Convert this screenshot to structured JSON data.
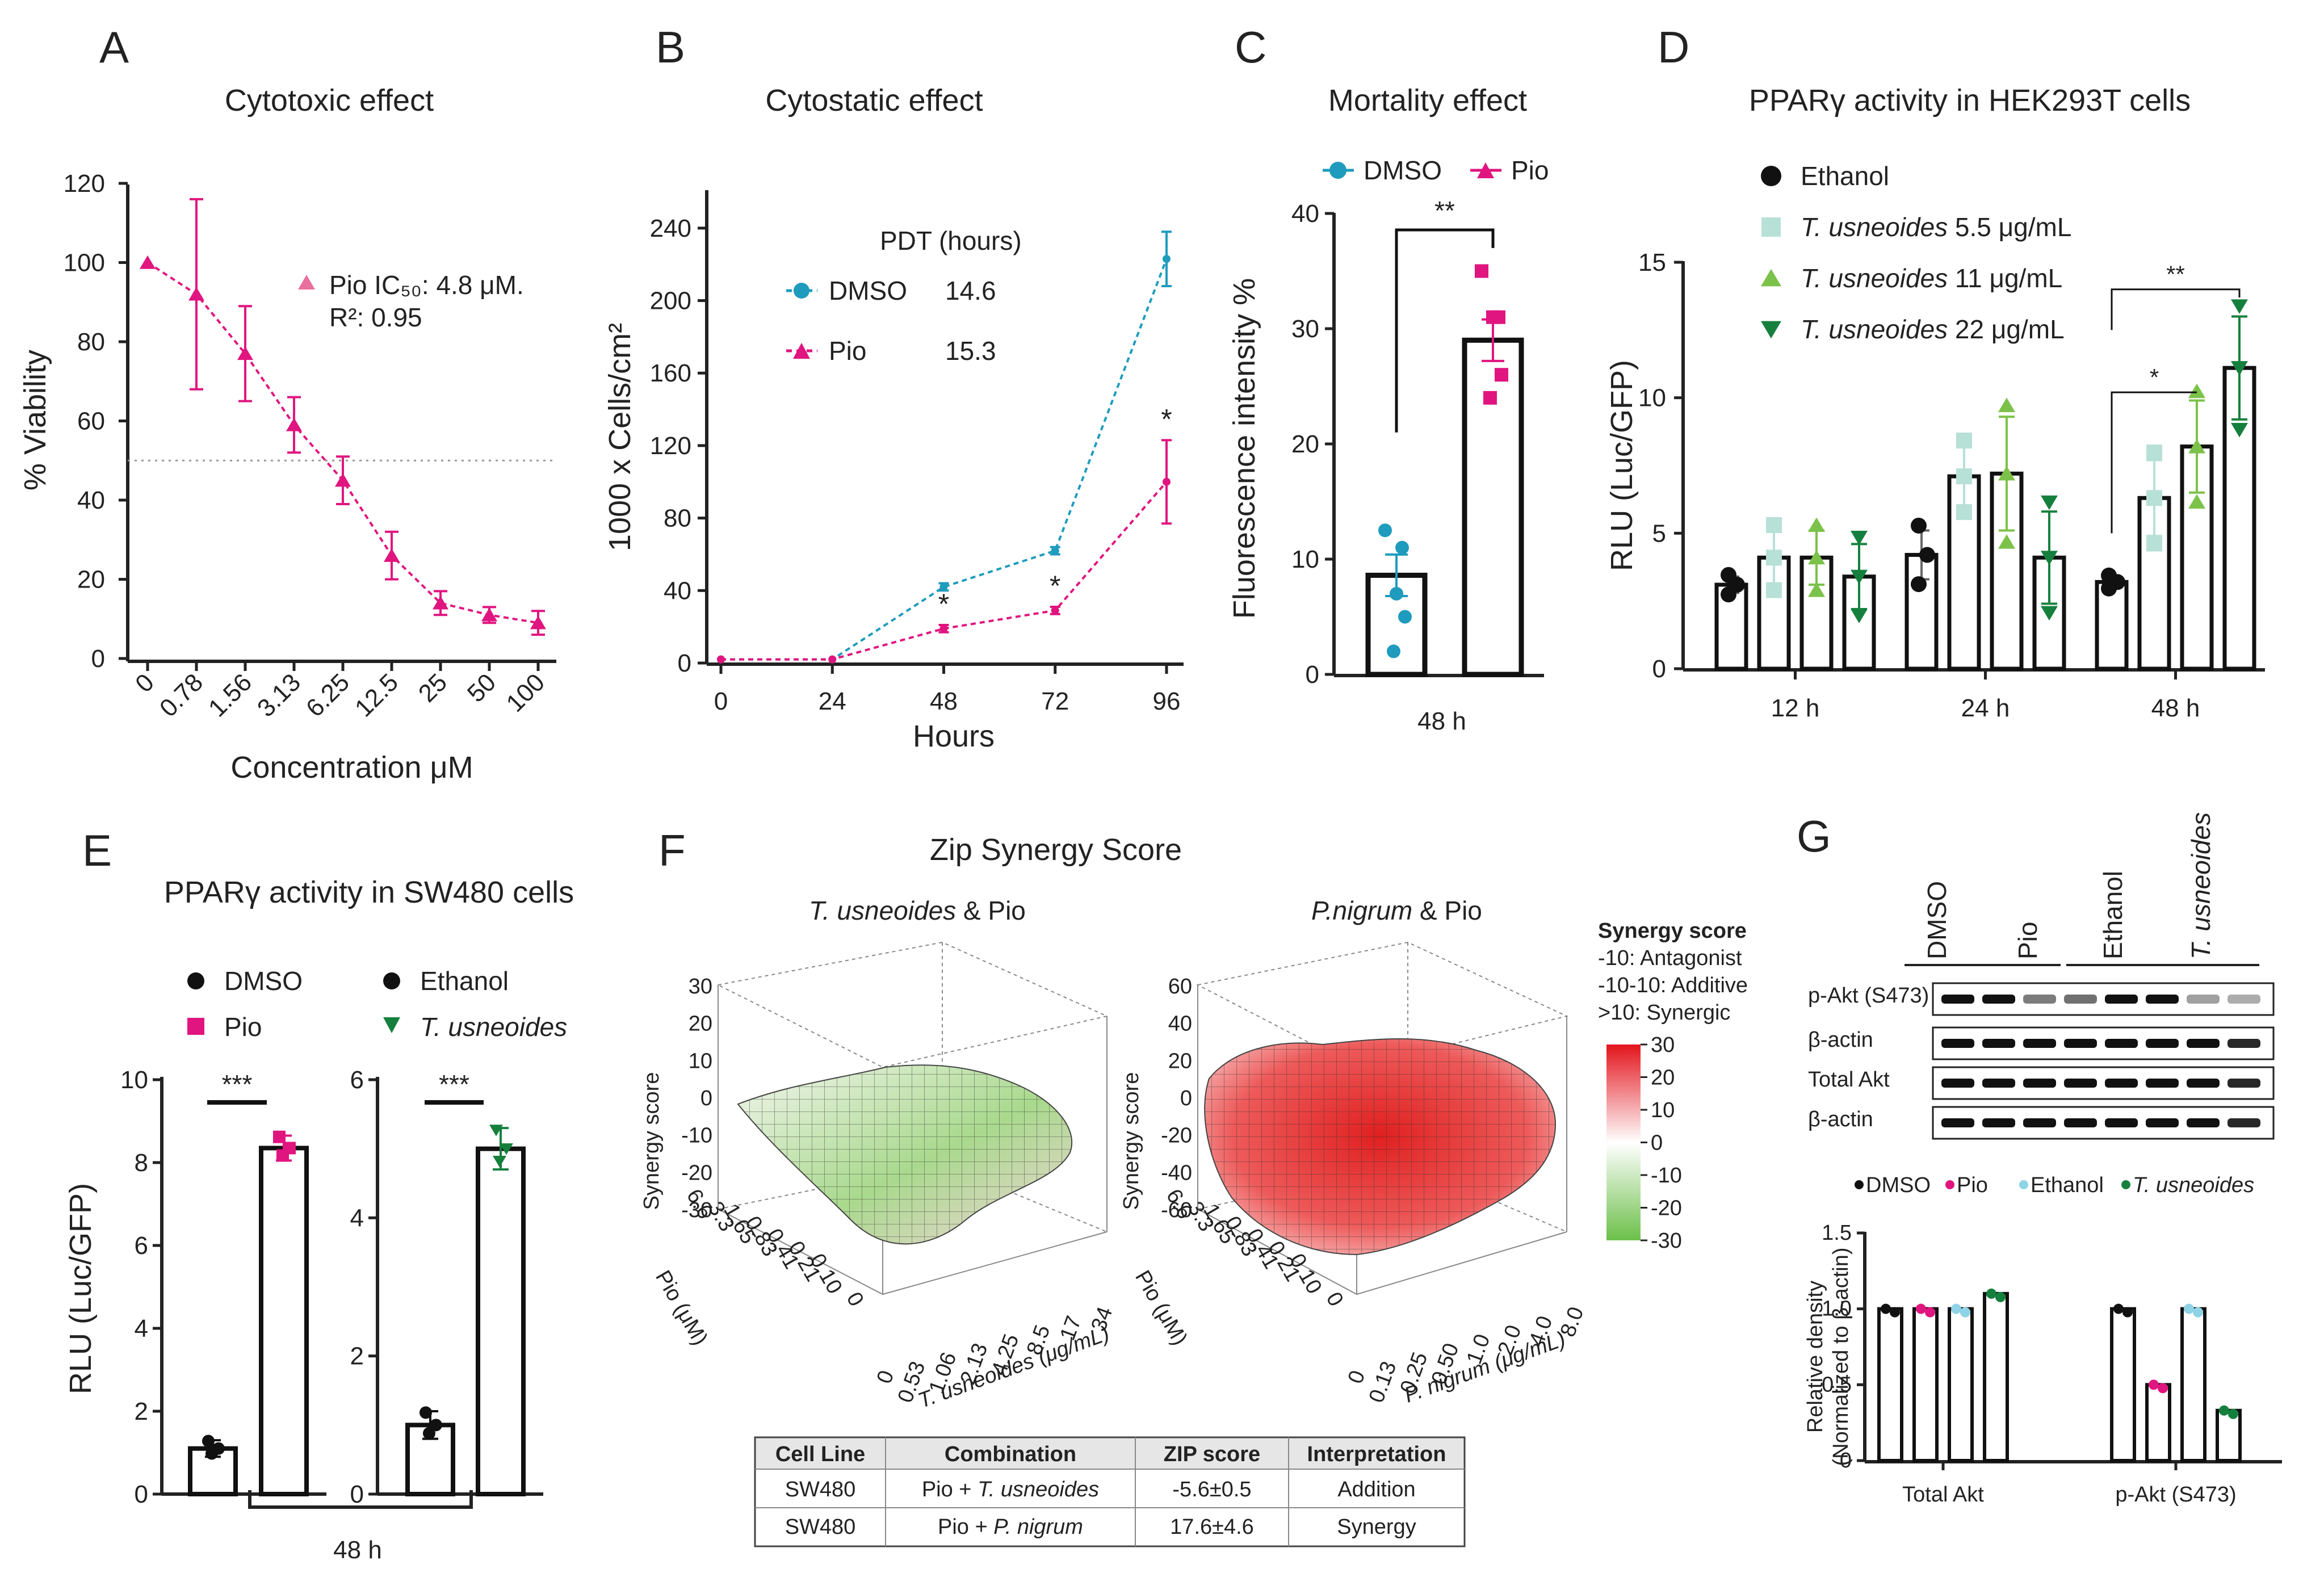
{
  "chart_data": [
    {
      "panel": "A",
      "type": "line",
      "title": "Cytotoxic effect",
      "xlabel": "Concentration μM",
      "ylabel": "% Viability",
      "categories": [
        "0",
        "0.78",
        "1.56",
        "3.13",
        "6.25",
        "12.5",
        "25",
        "50",
        "100"
      ],
      "values": [
        100,
        92,
        77,
        59,
        45,
        26,
        14,
        11,
        9
      ],
      "errors": [
        0,
        24,
        12,
        7,
        6,
        6,
        3,
        2,
        3
      ],
      "yticks": [
        "0",
        "20",
        "40",
        "60",
        "80",
        "100",
        "120"
      ],
      "ylim": [
        0,
        120
      ],
      "threshold": 50,
      "annotation_line1": "Pio IC₅₀: 4.8 μM.",
      "annotation_line2": "R²: 0.95",
      "color": "#e0157f"
    },
    {
      "panel": "B",
      "type": "line",
      "title": "Cytostatic effect",
      "xlabel": "Hours",
      "ylabel": "1000 x Cells/cm²",
      "x": [
        0,
        24,
        48,
        72,
        96
      ],
      "xticks": [
        "0",
        "24",
        "48",
        "72",
        "96"
      ],
      "yticks": [
        "0",
        "40",
        "80",
        "120",
        "160",
        "200",
        "240"
      ],
      "ylim": [
        0,
        260
      ],
      "legend_header": "PDT (hours)",
      "series": [
        {
          "name": "DMSO",
          "pdt": "14.6",
          "values": [
            2,
            2,
            42,
            62,
            223
          ],
          "errors": [
            0,
            0,
            2,
            2,
            15
          ],
          "color": "#1e9bbd"
        },
        {
          "name": "Pio",
          "pdt": "15.3",
          "values": [
            2,
            2,
            19,
            29,
            100
          ],
          "errors": [
            0,
            0,
            2,
            2,
            23
          ],
          "color": "#e0157f"
        }
      ],
      "significance": [
        "*",
        "*",
        "*"
      ]
    },
    {
      "panel": "C",
      "type": "bar",
      "title": "Mortality effect",
      "ylabel": "Fluorescence intensity %",
      "xlabel_category": "48 h",
      "yticks": [
        "0",
        "10",
        "20",
        "30",
        "40"
      ],
      "ylim": [
        0,
        40
      ],
      "series": [
        {
          "name": "DMSO",
          "value": 8.6,
          "error": 1.8,
          "points": [
            12.5,
            11,
            7,
            5,
            2
          ],
          "color": "#1e9bbd"
        },
        {
          "name": "Pio",
          "value": 29,
          "error": 1.8,
          "points": [
            35,
            31,
            31,
            26,
            24
          ],
          "color": "#e0157f"
        }
      ],
      "significance": "**"
    },
    {
      "panel": "D",
      "type": "bar",
      "title": "PPARγ activity in HEK293T cells",
      "ylabel": "RLU (Luc/GFP)",
      "categories": [
        "12 h",
        "24 h",
        "48 h"
      ],
      "yticks": [
        "0",
        "5",
        "10",
        "15"
      ],
      "ylim": [
        0,
        15
      ],
      "legend": [
        {
          "name": "Ethanol",
          "suffix": "",
          "italic": false,
          "color": "#111111"
        },
        {
          "name": "T. usneoides",
          "suffix": " 5.5 μg/mL",
          "italic": true,
          "color": "#b7e0d6"
        },
        {
          "name": "T. usneoides",
          "suffix": " 11 μg/mL",
          "italic": true,
          "color": "#7cc24a"
        },
        {
          "name": "T. usneoides",
          "suffix": " 22 μg/mL",
          "italic": true,
          "color": "#15803d"
        }
      ],
      "series_values": [
        [
          3.1,
          4.1,
          4.1,
          3.4
        ],
        [
          4.2,
          7.1,
          7.2,
          4.1
        ],
        [
          3.2,
          6.3,
          8.2,
          11.1
        ]
      ],
      "series_errors": [
        [
          0.3,
          1.0,
          1.0,
          1.2
        ],
        [
          0.9,
          1.1,
          2.1,
          1.7
        ],
        [
          0.2,
          1.4,
          1.7,
          1.9
        ]
      ],
      "significance": [
        "*",
        "**"
      ]
    },
    {
      "panel": "E",
      "type": "bar",
      "title": "PPARγ activity in SW480 cells",
      "ylabel": "RLU (Luc/GFP)",
      "xlabel_category": "48 h",
      "left": {
        "yticks": [
          "0",
          "2",
          "4",
          "6",
          "8",
          "10"
        ],
        "ylim": [
          0,
          10
        ],
        "series": [
          {
            "name": "DMSO",
            "value": 1.1,
            "error": 0.2,
            "color": "#111111"
          },
          {
            "name": "Pio",
            "value": 8.35,
            "error": 0.3,
            "color": "#e0157f"
          }
        ],
        "significance": "***"
      },
      "right": {
        "yticks": [
          "0",
          "2",
          "4",
          "6"
        ],
        "ylim": [
          0,
          6
        ],
        "series": [
          {
            "name": "Ethanol",
            "value": 1.0,
            "error": 0.2,
            "color": "#111111"
          },
          {
            "name": "T. usneoides",
            "value": 5.0,
            "error": 0.3,
            "color": "#15803d"
          }
        ],
        "significance": "***"
      }
    },
    {
      "panel": "F",
      "type": "heatmap",
      "title": "Zip Synergy Score",
      "plot1": {
        "title_italic": "T. usneoides",
        "title_rest": " & Pio",
        "zlabel": "Synergy score",
        "zticks": [
          "30",
          "20",
          "10",
          "0",
          "-10",
          "-20",
          "-30"
        ],
        "pio_ticks": [
          "6.6",
          "3.3",
          "1.65",
          "0.83",
          "0.41",
          "0.21",
          "0.10",
          "0"
        ],
        "x_ticks": [
          "0",
          "0.53",
          "1.06",
          "2.13",
          "4.25",
          "8.5",
          "17",
          "34"
        ],
        "ylabel": "Pio (μM)",
        "xlabel": "T. usneoides (μg/mL)"
      },
      "plot2": {
        "title_italic": "P.nigrum",
        "title_rest": " & Pio",
        "zlabel": "Synergy score",
        "zticks": [
          "60",
          "40",
          "20",
          "0",
          "-20",
          "-40",
          "-60"
        ],
        "pio_ticks": [
          "6.6",
          "3.3",
          "1.65",
          "0.83",
          "0.41",
          "0.21",
          "0.10",
          "0"
        ],
        "x_ticks": [
          "0",
          "0.13",
          "0.25",
          "0.50",
          "1.0",
          "2.0",
          "4.0",
          "8.0"
        ],
        "ylabel": "Pio (μM)",
        "xlabel": "P. nigrum (μg/mL)"
      },
      "legend_title": "Synergy score",
      "legend_lines": [
        "-10: Antagonist",
        "-10-10: Additive",
        ">10: Synergic"
      ],
      "colorbar_ticks": [
        "30",
        "20",
        "10",
        "0",
        "-10",
        "-20",
        "-30"
      ],
      "table": {
        "headers": [
          "Cell Line",
          "Combination",
          "ZIP score",
          "Interpretation"
        ],
        "rows": [
          [
            "SW480",
            "Pio + ",
            "T. usneoides",
            "-5.6±0.5",
            "Addition"
          ],
          [
            "SW480",
            "Pio + ",
            "P. nigrum",
            "17.6±4.6",
            "Synergy"
          ]
        ]
      }
    },
    {
      "panel": "G",
      "type": "bar",
      "blot_groups": [
        "DMSO",
        "Pio",
        "Ethanol",
        "T. usneoides"
      ],
      "blot_rows": [
        "p-Akt (S473)",
        "β-actin",
        "Total Akt",
        "β-actin"
      ],
      "legend": [
        {
          "name": "DMSO",
          "color": "#111111",
          "italic": false
        },
        {
          "name": "Pio",
          "color": "#e0157f",
          "italic": false
        },
        {
          "name": "Ethanol",
          "color": "#8fd3e6",
          "italic": false
        },
        {
          "name": "T. usneoides",
          "color": "#15803d",
          "italic": true
        }
      ],
      "ylabel1": "Relative density",
      "ylabel2": "(Normalized to β-actin)",
      "categories": [
        "Total Akt",
        "p-Akt (S473)"
      ],
      "yticks": [
        "0",
        "0.5",
        "1.0",
        "1.5"
      ],
      "ylim": [
        0,
        1.5
      ],
      "values": [
        [
          1.0,
          1.0,
          1.0,
          1.1
        ],
        [
          1.0,
          0.5,
          1.0,
          0.33
        ]
      ]
    }
  ],
  "panel_letters": [
    "A",
    "B",
    "C",
    "D",
    "E",
    "F",
    "G"
  ]
}
